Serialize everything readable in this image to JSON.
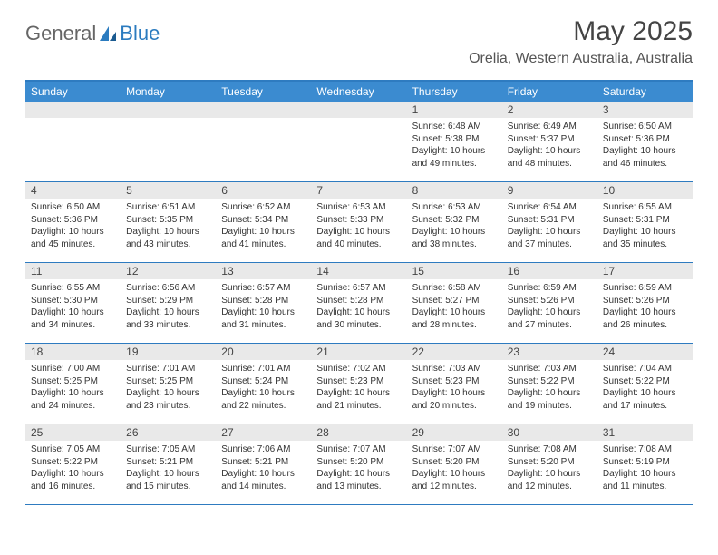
{
  "logo": {
    "text1": "General",
    "text2": "Blue"
  },
  "title": "May 2025",
  "location": "Orelia, Western Australia, Australia",
  "colors": {
    "header_bar": "#3b8bd0",
    "rule": "#2e7bc0",
    "daynum_bg": "#e9e9e9",
    "text": "#333333",
    "logo_blue": "#2b7bbf"
  },
  "weekdays": [
    "Sunday",
    "Monday",
    "Tuesday",
    "Wednesday",
    "Thursday",
    "Friday",
    "Saturday"
  ],
  "weeks": [
    [
      null,
      null,
      null,
      null,
      {
        "n": "1",
        "sr": "6:48 AM",
        "ss": "5:38 PM",
        "dl": "10 hours and 49 minutes."
      },
      {
        "n": "2",
        "sr": "6:49 AM",
        "ss": "5:37 PM",
        "dl": "10 hours and 48 minutes."
      },
      {
        "n": "3",
        "sr": "6:50 AM",
        "ss": "5:36 PM",
        "dl": "10 hours and 46 minutes."
      }
    ],
    [
      {
        "n": "4",
        "sr": "6:50 AM",
        "ss": "5:36 PM",
        "dl": "10 hours and 45 minutes."
      },
      {
        "n": "5",
        "sr": "6:51 AM",
        "ss": "5:35 PM",
        "dl": "10 hours and 43 minutes."
      },
      {
        "n": "6",
        "sr": "6:52 AM",
        "ss": "5:34 PM",
        "dl": "10 hours and 41 minutes."
      },
      {
        "n": "7",
        "sr": "6:53 AM",
        "ss": "5:33 PM",
        "dl": "10 hours and 40 minutes."
      },
      {
        "n": "8",
        "sr": "6:53 AM",
        "ss": "5:32 PM",
        "dl": "10 hours and 38 minutes."
      },
      {
        "n": "9",
        "sr": "6:54 AM",
        "ss": "5:31 PM",
        "dl": "10 hours and 37 minutes."
      },
      {
        "n": "10",
        "sr": "6:55 AM",
        "ss": "5:31 PM",
        "dl": "10 hours and 35 minutes."
      }
    ],
    [
      {
        "n": "11",
        "sr": "6:55 AM",
        "ss": "5:30 PM",
        "dl": "10 hours and 34 minutes."
      },
      {
        "n": "12",
        "sr": "6:56 AM",
        "ss": "5:29 PM",
        "dl": "10 hours and 33 minutes."
      },
      {
        "n": "13",
        "sr": "6:57 AM",
        "ss": "5:28 PM",
        "dl": "10 hours and 31 minutes."
      },
      {
        "n": "14",
        "sr": "6:57 AM",
        "ss": "5:28 PM",
        "dl": "10 hours and 30 minutes."
      },
      {
        "n": "15",
        "sr": "6:58 AM",
        "ss": "5:27 PM",
        "dl": "10 hours and 28 minutes."
      },
      {
        "n": "16",
        "sr": "6:59 AM",
        "ss": "5:26 PM",
        "dl": "10 hours and 27 minutes."
      },
      {
        "n": "17",
        "sr": "6:59 AM",
        "ss": "5:26 PM",
        "dl": "10 hours and 26 minutes."
      }
    ],
    [
      {
        "n": "18",
        "sr": "7:00 AM",
        "ss": "5:25 PM",
        "dl": "10 hours and 24 minutes."
      },
      {
        "n": "19",
        "sr": "7:01 AM",
        "ss": "5:25 PM",
        "dl": "10 hours and 23 minutes."
      },
      {
        "n": "20",
        "sr": "7:01 AM",
        "ss": "5:24 PM",
        "dl": "10 hours and 22 minutes."
      },
      {
        "n": "21",
        "sr": "7:02 AM",
        "ss": "5:23 PM",
        "dl": "10 hours and 21 minutes."
      },
      {
        "n": "22",
        "sr": "7:03 AM",
        "ss": "5:23 PM",
        "dl": "10 hours and 20 minutes."
      },
      {
        "n": "23",
        "sr": "7:03 AM",
        "ss": "5:22 PM",
        "dl": "10 hours and 19 minutes."
      },
      {
        "n": "24",
        "sr": "7:04 AM",
        "ss": "5:22 PM",
        "dl": "10 hours and 17 minutes."
      }
    ],
    [
      {
        "n": "25",
        "sr": "7:05 AM",
        "ss": "5:22 PM",
        "dl": "10 hours and 16 minutes."
      },
      {
        "n": "26",
        "sr": "7:05 AM",
        "ss": "5:21 PM",
        "dl": "10 hours and 15 minutes."
      },
      {
        "n": "27",
        "sr": "7:06 AM",
        "ss": "5:21 PM",
        "dl": "10 hours and 14 minutes."
      },
      {
        "n": "28",
        "sr": "7:07 AM",
        "ss": "5:20 PM",
        "dl": "10 hours and 13 minutes."
      },
      {
        "n": "29",
        "sr": "7:07 AM",
        "ss": "5:20 PM",
        "dl": "10 hours and 12 minutes."
      },
      {
        "n": "30",
        "sr": "7:08 AM",
        "ss": "5:20 PM",
        "dl": "10 hours and 12 minutes."
      },
      {
        "n": "31",
        "sr": "7:08 AM",
        "ss": "5:19 PM",
        "dl": "10 hours and 11 minutes."
      }
    ]
  ],
  "labels": {
    "sunrise": "Sunrise: ",
    "sunset": "Sunset: ",
    "daylight": "Daylight: "
  }
}
